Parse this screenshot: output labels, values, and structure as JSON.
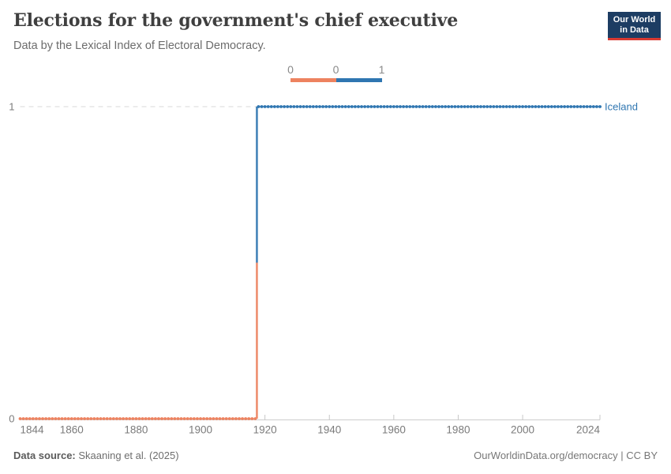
{
  "header": {
    "title": "Elections for the government's chief executive",
    "subtitle": "Data by the Lexical Index of Electoral Democracy.",
    "logo": {
      "line1": "Our World",
      "line2": "in Data",
      "bg_color": "#1d3d63",
      "accent_color": "#d93a32"
    }
  },
  "legend": {
    "edge_labels": [
      "0",
      "0",
      "1"
    ],
    "bins": [
      {
        "value": 0,
        "color": "#ED825F"
      },
      {
        "value": 1,
        "color": "#2F76B1"
      }
    ]
  },
  "chart_data": {
    "type": "line",
    "line_style": "step-with-yearly-markers",
    "title": "Elections for the government's chief executive",
    "entity": "Iceland",
    "x": {
      "min": 1844,
      "max": 2024,
      "ticks": [
        1844,
        1860,
        1880,
        1900,
        1920,
        1940,
        1960,
        1980,
        2000,
        2024
      ],
      "tick_marks": [
        1920,
        1940,
        1960,
        1980,
        2000,
        2024
      ]
    },
    "y": {
      "min": 0,
      "max": 1,
      "ticks": [
        0,
        1
      ],
      "gridline_values": [
        1
      ]
    },
    "value_colors": {
      "0": "#ED825F",
      "1": "#2F76B1"
    },
    "series": [
      {
        "name": "Iceland",
        "points": [
          {
            "year": 1844,
            "value": 0
          },
          {
            "year": 1917,
            "value": 0
          },
          {
            "year": 1918,
            "value": 1
          },
          {
            "year": 2024,
            "value": 1
          }
        ]
      }
    ],
    "axis_color": "#cccccc",
    "gridline_color": "#d9d9d9",
    "tick_label_color": "#7b7b7b"
  },
  "footer": {
    "source_label": "Data source:",
    "source_text": "Skaaning et al. (2025)",
    "license_text": "OurWorldinData.org/democracy | CC BY"
  }
}
